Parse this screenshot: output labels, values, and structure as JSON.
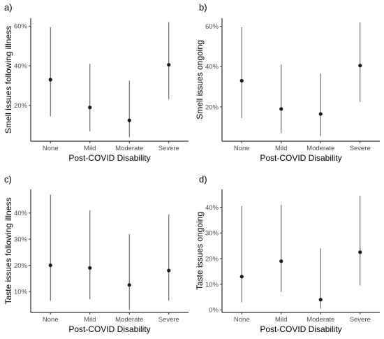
{
  "chart_data": [
    {
      "type": "scatter",
      "panel_label": "a)",
      "title": "",
      "categories": [
        "None",
        "Mild",
        "Moderate",
        "Severe"
      ],
      "values": [
        0.33,
        0.19,
        0.125,
        0.405
      ],
      "lower": [
        0.145,
        0.07,
        0.04,
        0.23
      ],
      "upper": [
        0.595,
        0.41,
        0.325,
        0.62
      ],
      "xlabel": "Post-COVID Disability",
      "ylabel": "Smell issues following illness",
      "yticks": [
        0.2,
        0.4,
        0.6
      ],
      "ytick_labels": [
        "20%",
        "40%",
        "60%"
      ],
      "ylim": [
        0.02,
        0.64
      ]
    },
    {
      "type": "scatter",
      "panel_label": "b)",
      "title": "",
      "categories": [
        "None",
        "Mild",
        "Moderate",
        "Severe"
      ],
      "values": [
        0.33,
        0.19,
        0.165,
        0.405
      ],
      "lower": [
        0.145,
        0.07,
        0.055,
        0.225
      ],
      "upper": [
        0.595,
        0.41,
        0.365,
        0.62
      ],
      "xlabel": "Post-COVID Disability",
      "ylabel": "Smell issues ongoing",
      "yticks": [
        0.2,
        0.4,
        0.6
      ],
      "ytick_labels": [
        "20%",
        "40%",
        "60%"
      ],
      "ylim": [
        0.03,
        0.64
      ]
    },
    {
      "type": "scatter",
      "panel_label": "c)",
      "title": "",
      "categories": [
        "None",
        "Mild",
        "Moderate",
        "Severe"
      ],
      "values": [
        0.2,
        0.19,
        0.125,
        0.18
      ],
      "lower": [
        0.065,
        0.07,
        0.03,
        0.065
      ],
      "upper": [
        0.47,
        0.41,
        0.32,
        0.395
      ],
      "xlabel": "Post-COVID Disability",
      "ylabel": "Taste issues following illness",
      "yticks": [
        0.1,
        0.2,
        0.3,
        0.4
      ],
      "ytick_labels": [
        "10%",
        "20%",
        "30%",
        "40%"
      ],
      "ylim": [
        0.02,
        0.49
      ]
    },
    {
      "type": "scatter",
      "panel_label": "d)",
      "title": "",
      "categories": [
        "None",
        "Mild",
        "Moderate",
        "Severe"
      ],
      "values": [
        0.13,
        0.19,
        0.04,
        0.225
      ],
      "lower": [
        0.03,
        0.07,
        0.005,
        0.095
      ],
      "upper": [
        0.405,
        0.41,
        0.24,
        0.445
      ],
      "xlabel": "Post-COVID Disability",
      "ylabel": "Taste issues ongoing",
      "yticks": [
        0,
        0.1,
        0.2,
        0.3,
        0.4
      ],
      "ytick_labels": [
        "0%",
        "10%",
        "20%",
        "30%",
        "40%"
      ],
      "ylim": [
        -0.01,
        0.47
      ]
    }
  ]
}
